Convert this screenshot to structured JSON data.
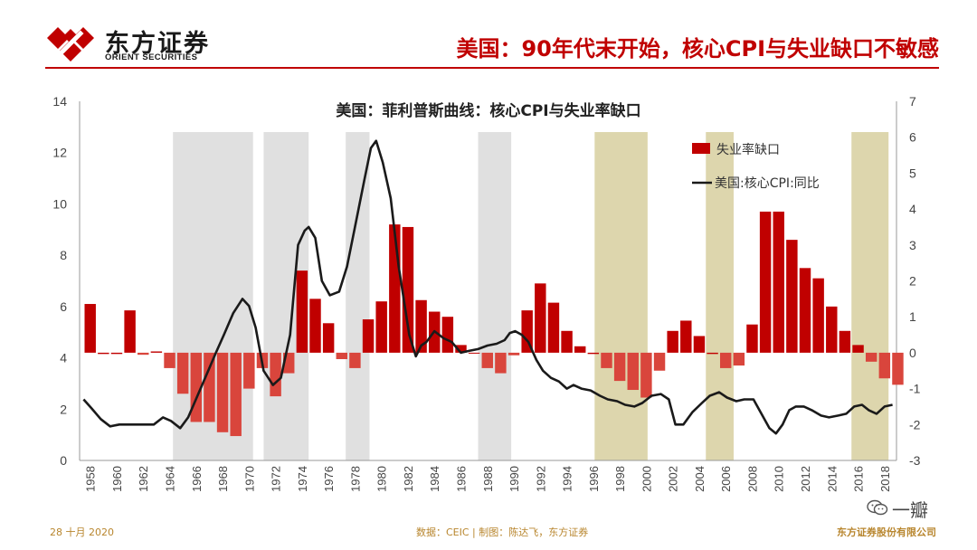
{
  "header": {
    "brand_cn": "东方证券",
    "brand_en": "ORIENT SECURITIES",
    "slide_title": "美国：90年代末开始，核心CPI与失业缺口不敏感",
    "colors": {
      "accent": "#c00000"
    }
  },
  "footer": {
    "date": "28 十月 2020",
    "source": "数据：CEIC | 制图：陈达飞，东方证券",
    "company": "东方证券股份有限公司",
    "watermark": "一瓣"
  },
  "chart_data": {
    "type": "bar",
    "title": "美国：菲利普斯曲线：核心CPI与失业率缺口",
    "x_tick_labels": [
      "1958",
      "1960",
      "1962",
      "1964",
      "1966",
      "1968",
      "1970",
      "1972",
      "1974",
      "1976",
      "1978",
      "1980",
      "1982",
      "1984",
      "1986",
      "1988",
      "1990",
      "1992",
      "1994",
      "1996",
      "1998",
      "2000",
      "2002",
      "2004",
      "2006",
      "2008",
      "2010",
      "2012",
      "2014",
      "2016",
      "2018"
    ],
    "left_axis": {
      "min": 0,
      "max": 14,
      "ticks": [
        0,
        2,
        4,
        6,
        8,
        10,
        12,
        14
      ]
    },
    "right_axis": {
      "min": -3,
      "max": 7,
      "ticks": [
        -3,
        -2,
        -1,
        0,
        1,
        2,
        3,
        4,
        5,
        6,
        7
      ]
    },
    "legend": [
      "失业率缺口",
      "美国:核心CPI:同比"
    ],
    "legend_position": "top-right",
    "colors": {
      "bar_positive": "#c00000",
      "bar_negative": "#d9453c",
      "line": "#1a1a1a",
      "recession_band": "#e0e0e0",
      "flat_band": "#ddd6ad"
    },
    "recession_periods": [
      [
        1964.75,
        1970.8
      ],
      [
        1971.6,
        1975.0
      ],
      [
        1977.8,
        1979.6
      ],
      [
        1987.8,
        1990.3
      ]
    ],
    "insensitive_periods": [
      [
        1996.6,
        2000.6
      ],
      [
        2005.0,
        2007.1
      ],
      [
        2016.0,
        2018.8
      ]
    ],
    "unemployment_gap": {
      "years": [
        1958,
        1959,
        1960,
        1961,
        1962,
        1963,
        1964,
        1965,
        1966,
        1967,
        1968,
        1969,
        1970,
        1971,
        1972,
        1973,
        1974,
        1975,
        1976,
        1977,
        1978,
        1979,
        1980,
        1981,
        1982,
        1983,
        1984,
        1985,
        1986,
        1987,
        1988,
        1989,
        1990,
        1991,
        1992,
        1993,
        1994,
        1995,
        1996,
        1997,
        1998,
        1999,
        2000,
        2001,
        2002,
        2003,
        2004,
        2005,
        2006,
        2007,
        2008,
        2009,
        2010,
        2011,
        2012,
        2013,
        2014,
        2015,
        2016,
        2017,
        2018,
        2019
      ],
      "values": [
        6.1,
        4.15,
        4.15,
        5.85,
        4.12,
        4.25,
        3.6,
        2.6,
        1.5,
        1.5,
        1.1,
        0.95,
        2.8,
        3.6,
        2.5,
        3.4,
        7.4,
        6.3,
        5.35,
        3.95,
        3.6,
        5.5,
        6.2,
        9.2,
        9.1,
        6.25,
        5.8,
        5.6,
        4.5,
        4.2,
        3.6,
        3.4,
        4.1,
        5.85,
        6.9,
        6.15,
        5.05,
        4.45,
        4.15,
        3.6,
        3.1,
        2.75,
        2.45,
        3.5,
        5.05,
        5.45,
        4.85,
        4.15,
        3.6,
        3.7,
        5.3,
        9.7,
        9.7,
        8.6,
        7.5,
        7.1,
        6.0,
        5.05,
        4.5,
        3.85,
        3.2,
        2.95
      ]
    },
    "core_cpi_yoy": {
      "x": [
        1958.0,
        1958.6,
        1959.3,
        1960.0,
        1960.7,
        1961.5,
        1962.5,
        1963.3,
        1964.0,
        1964.6,
        1965.3,
        1965.9,
        1966.6,
        1967.3,
        1968.0,
        1968.6,
        1969.3,
        1970.0,
        1970.5,
        1971.0,
        1971.6,
        1972.3,
        1972.9,
        1973.6,
        1974.2,
        1974.7,
        1975.0,
        1975.5,
        1976.0,
        1976.6,
        1977.3,
        1977.9,
        1978.5,
        1979.2,
        1979.7,
        1980.1,
        1980.6,
        1981.2,
        1981.8,
        1982.6,
        1983.1,
        1983.5,
        1983.9,
        1984.5,
        1985.2,
        1985.8,
        1986.5,
        1987.1,
        1987.8,
        1988.5,
        1989.2,
        1989.8,
        1990.2,
        1990.6,
        1991.1,
        1991.6,
        1992.2,
        1992.7,
        1993.3,
        1993.9,
        1994.5,
        1995.0,
        1995.6,
        1996.3,
        1997.0,
        1997.6,
        1998.3,
        1998.9,
        1999.6,
        2000.2,
        2000.9,
        2001.6,
        2002.2,
        2002.7,
        2003.3,
        2004.0,
        2004.7,
        2005.3,
        2006.0,
        2006.6,
        2007.3,
        2007.9,
        2008.6,
        2009.2,
        2009.8,
        2010.3,
        2010.8,
        2011.3,
        2011.8,
        2012.4,
        2013.0,
        2013.7,
        2014.3,
        2015.0,
        2015.6,
        2016.2,
        2016.8,
        2017.3,
        2017.9,
        2018.5,
        2019.1
      ],
      "y": [
        -1.3,
        -1.55,
        -1.85,
        -2.05,
        -2.0,
        -2.0,
        -2.0,
        -2.0,
        -1.8,
        -1.9,
        -2.1,
        -1.8,
        -1.2,
        -0.6,
        0.0,
        0.5,
        1.1,
        1.5,
        1.3,
        0.7,
        -0.5,
        -0.9,
        -0.7,
        0.5,
        3.0,
        3.4,
        3.5,
        3.2,
        2.0,
        1.6,
        1.7,
        2.4,
        3.5,
        4.8,
        5.7,
        5.9,
        5.3,
        4.3,
        2.4,
        0.5,
        -0.1,
        0.2,
        0.3,
        0.6,
        0.4,
        0.3,
        0.0,
        0.05,
        0.1,
        0.2,
        0.25,
        0.35,
        0.55,
        0.6,
        0.5,
        0.3,
        -0.2,
        -0.5,
        -0.7,
        -0.8,
        -1.0,
        -0.9,
        -1.0,
        -1.05,
        -1.2,
        -1.3,
        -1.35,
        -1.45,
        -1.5,
        -1.4,
        -1.2,
        -1.15,
        -1.3,
        -2.0,
        -2.0,
        -1.65,
        -1.4,
        -1.2,
        -1.1,
        -1.25,
        -1.35,
        -1.3,
        -1.3,
        -1.7,
        -2.1,
        -2.25,
        -2.0,
        -1.6,
        -1.5,
        -1.5,
        -1.6,
        -1.75,
        -1.8,
        -1.75,
        -1.7,
        -1.5,
        -1.45,
        -1.6,
        -1.7,
        -1.5,
        -1.45
      ]
    }
  }
}
